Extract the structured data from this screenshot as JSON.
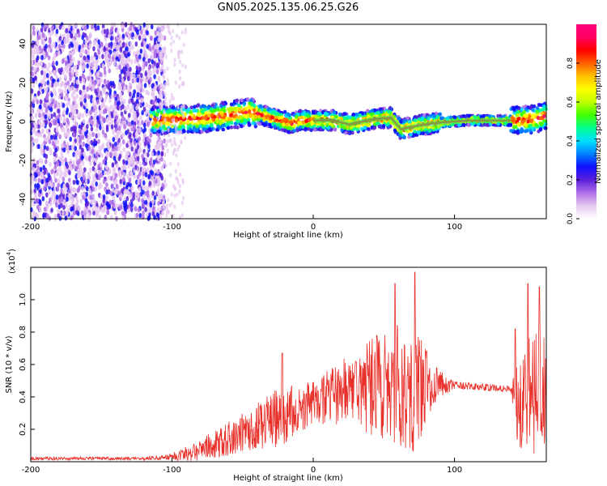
{
  "title": "GN05.2025.135.06.25.G26",
  "chart_data": [
    {
      "type": "heatmap",
      "xlabel": "Height of straight line (km)",
      "ylabel": "Frequency (Hz)",
      "xlim": [
        -200,
        165
      ],
      "ylim": [
        -50,
        50
      ],
      "xticks": [
        "-200",
        "-100",
        "0",
        "100"
      ],
      "yticks": [
        "40",
        "20",
        "0",
        "-20",
        "-40"
      ],
      "noise_band": {
        "x_start": -200,
        "x_end": -105
      },
      "ridge": [
        {
          "x": -115,
          "y": 0.5
        },
        {
          "x": -100,
          "y": 1
        },
        {
          "x": -80,
          "y": 1.5
        },
        {
          "x": -60,
          "y": 3
        },
        {
          "x": -45,
          "y": 5
        },
        {
          "x": -35,
          "y": 3
        },
        {
          "x": -25,
          "y": 1
        },
        {
          "x": -15,
          "y": -1
        },
        {
          "x": -10,
          "y": 0.5
        },
        {
          "x": 0,
          "y": 0.5
        },
        {
          "x": 15,
          "y": 0.5
        },
        {
          "x": 25,
          "y": -1.5
        },
        {
          "x": 35,
          "y": 0
        },
        {
          "x": 45,
          "y": 1.5
        },
        {
          "x": 55,
          "y": 2
        },
        {
          "x": 62,
          "y": -4
        },
        {
          "x": 75,
          "y": -2
        },
        {
          "x": 90,
          "y": -0.5
        },
        {
          "x": 110,
          "y": 0.5
        },
        {
          "x": 130,
          "y": 0.5
        },
        {
          "x": 145,
          "y": 0.5
        },
        {
          "x": 155,
          "y": 1
        },
        {
          "x": 165,
          "y": 3
        }
      ],
      "colorbar": {
        "label": "Normalized spectral amplitude",
        "range": [
          0,
          1
        ],
        "ticks": [
          "0.0",
          "0.2",
          "0.4",
          "0.6",
          "0.8"
        ],
        "colors": [
          "#ffffff",
          "#e6c8f0",
          "#b070e8",
          "#5a1fd8",
          "#1010ff",
          "#0080ff",
          "#00e0ff",
          "#00ff90",
          "#40ff00",
          "#c0ff00",
          "#ffff00",
          "#ffc000",
          "#ff6000",
          "#ff0000",
          "#ff0060",
          "#ff0080"
        ]
      }
    },
    {
      "type": "line",
      "xlabel": "Height of straight line (km)",
      "ylabel": "SNR (10 * v/v)",
      "exponent_label": "(x10",
      "exponent_power": "4",
      "xlim": [
        -200,
        165
      ],
      "ylim": [
        0,
        1.2
      ],
      "xticks": [
        "-200",
        "-100",
        "0",
        "100"
      ],
      "yticks": [
        "0.2",
        "0.4",
        "0.6",
        "0.8",
        "1.0"
      ],
      "color": "#e8302a",
      "envelope": [
        {
          "x": -200,
          "base": 0.02,
          "amp": 0.01
        },
        {
          "x": -120,
          "base": 0.02,
          "amp": 0.01
        },
        {
          "x": -100,
          "base": 0.03,
          "amp": 0.02
        },
        {
          "x": -90,
          "base": 0.05,
          "amp": 0.05
        },
        {
          "x": -75,
          "base": 0.09,
          "amp": 0.08
        },
        {
          "x": -60,
          "base": 0.14,
          "amp": 0.11
        },
        {
          "x": -45,
          "base": 0.2,
          "amp": 0.13
        },
        {
          "x": -30,
          "base": 0.25,
          "amp": 0.17
        },
        {
          "x": -22,
          "base": 0.3,
          "amp": 0.2
        },
        {
          "x": -10,
          "base": 0.32,
          "amp": 0.14
        },
        {
          "x": 5,
          "base": 0.38,
          "amp": 0.15
        },
        {
          "x": 20,
          "base": 0.43,
          "amp": 0.2
        },
        {
          "x": 30,
          "base": 0.45,
          "amp": 0.25
        },
        {
          "x": 45,
          "base": 0.46,
          "amp": 0.32
        },
        {
          "x": 60,
          "base": 0.47,
          "amp": 0.38
        },
        {
          "x": 72,
          "base": 0.46,
          "amp": 0.42
        },
        {
          "x": 85,
          "base": 0.48,
          "amp": 0.12
        },
        {
          "x": 100,
          "base": 0.47,
          "amp": 0.025
        },
        {
          "x": 140,
          "base": 0.45,
          "amp": 0.02
        },
        {
          "x": 145,
          "base": 0.4,
          "amp": 0.3
        },
        {
          "x": 158,
          "base": 0.45,
          "amp": 0.45
        },
        {
          "x": 165,
          "base": 0.35,
          "amp": 0.4
        }
      ],
      "spikes": [
        {
          "x": -22,
          "y": 0.67
        },
        {
          "x": -5,
          "y": 0.42
        },
        {
          "x": 30,
          "y": 0.62
        },
        {
          "x": 45,
          "y": 0.78
        },
        {
          "x": 58,
          "y": 1.1
        },
        {
          "x": 72,
          "y": 1.17
        },
        {
          "x": 80,
          "y": 0.68
        },
        {
          "x": 143,
          "y": 0.82
        },
        {
          "x": 152,
          "y": 1.1
        },
        {
          "x": 160,
          "y": 1.08
        }
      ]
    }
  ]
}
